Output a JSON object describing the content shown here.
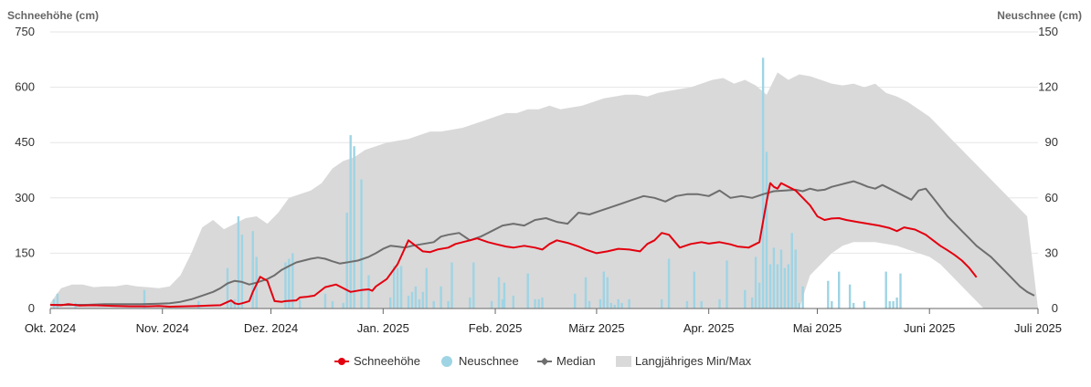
{
  "chart_data": {
    "type": "line",
    "title": "",
    "ylabel_left": "Schneehöhe (cm)",
    "ylabel_right": "Neuschnee (cm)",
    "ylim_left": [
      0,
      750
    ],
    "ylim_right": [
      0,
      150
    ],
    "yticks_left": [
      0,
      150,
      300,
      450,
      600,
      750
    ],
    "yticks_right": [
      0,
      30,
      60,
      90,
      120,
      150
    ],
    "yticks_left_labels": [
      "0",
      "150",
      "300",
      "450",
      "600",
      "750"
    ],
    "yticks_right_labels": [
      "0",
      "30",
      "60",
      "90",
      "120",
      "150"
    ],
    "x_day_range": [
      0,
      273
    ],
    "x_unit": "days since 2024-10-01",
    "xticks": [
      {
        "label": "Okt. 2024",
        "day": 0
      },
      {
        "label": "Nov. 2024",
        "day": 31
      },
      {
        "label": "Dez. 2024",
        "day": 61
      },
      {
        "label": "Jan. 2025",
        "day": 92
      },
      {
        "label": "Feb. 2025",
        "day": 123
      },
      {
        "label": "März 2025",
        "day": 151
      },
      {
        "label": "Apr. 2025",
        "day": 182
      },
      {
        "label": "Mai 2025",
        "day": 212
      },
      {
        "label": "Juni 2025",
        "day": 243
      },
      {
        "label": "Juli 2025",
        "day": 273
      }
    ],
    "grid": true,
    "legend_position": "bottom-center",
    "legend": [
      {
        "key": "schneehoehe",
        "label": "Schneehöhe",
        "color": "#e3000f"
      },
      {
        "key": "neuschnee",
        "label": "Neuschnee",
        "color": "#9fd4e4"
      },
      {
        "key": "median",
        "label": "Median",
        "color": "#6e6e6e"
      },
      {
        "key": "minmax",
        "label": "Langjähriges Min/Max",
        "color": "#d9d9d9"
      }
    ],
    "series": {
      "schneehoehe": {
        "name": "Schneehöhe",
        "axis": "left",
        "x": [
          0,
          3,
          5,
          8,
          12,
          18,
          22,
          27,
          30,
          33,
          37,
          41,
          44,
          47,
          50,
          51,
          52,
          53,
          55,
          56,
          58,
          60,
          62,
          64,
          65,
          68,
          69,
          71,
          73,
          76,
          79,
          80,
          83,
          86,
          88,
          89,
          90,
          93,
          96,
          99,
          101,
          103,
          105,
          107,
          110,
          112,
          114,
          116,
          118,
          121,
          123,
          126,
          128,
          131,
          134,
          136,
          138,
          140,
          143,
          146,
          148,
          151,
          154,
          157,
          160,
          163,
          165,
          167,
          169,
          171,
          174,
          177,
          180,
          182,
          185,
          188,
          190,
          193,
          196,
          198,
          199,
          200,
          201,
          202,
          204,
          206,
          208,
          210,
          212,
          214,
          216,
          218,
          220,
          223,
          226,
          229,
          232,
          234,
          236,
          239,
          242,
          244,
          246,
          248,
          250,
          252,
          254,
          256
        ],
        "y": [
          10,
          9,
          12,
          8,
          9,
          7,
          6,
          6,
          7,
          5,
          6,
          7,
          8,
          9,
          22,
          14,
          12,
          14,
          20,
          45,
          86,
          75,
          20,
          18,
          20,
          22,
          30,
          32,
          35,
          58,
          65,
          60,
          45,
          50,
          52,
          48,
          60,
          80,
          120,
          185,
          170,
          155,
          153,
          160,
          165,
          175,
          180,
          185,
          190,
          180,
          175,
          168,
          165,
          170,
          165,
          160,
          175,
          185,
          178,
          168,
          160,
          150,
          155,
          162,
          160,
          155,
          175,
          185,
          205,
          200,
          165,
          175,
          180,
          176,
          180,
          174,
          168,
          165,
          180,
          290,
          340,
          330,
          325,
          340,
          330,
          320,
          300,
          280,
          250,
          240,
          244,
          245,
          240,
          235,
          230,
          225,
          218,
          210,
          220,
          214,
          200,
          185,
          170,
          158,
          145,
          130,
          110,
          85
        ]
      },
      "median": {
        "name": "Median",
        "axis": "left",
        "x": [
          0,
          5,
          10,
          15,
          20,
          25,
          30,
          33,
          36,
          39,
          42,
          45,
          47,
          49,
          51,
          53,
          55,
          57,
          60,
          62,
          64,
          66,
          68,
          70,
          72,
          74,
          76,
          78,
          80,
          82,
          85,
          88,
          90,
          92,
          94,
          96,
          98,
          100,
          103,
          106,
          108,
          110,
          113,
          116,
          119,
          122,
          125,
          128,
          131,
          134,
          137,
          140,
          143,
          146,
          149,
          152,
          155,
          158,
          161,
          164,
          167,
          170,
          173,
          176,
          179,
          182,
          185,
          188,
          191,
          194,
          197,
          200,
          203,
          206,
          208,
          210,
          212,
          214,
          216,
          218,
          220,
          222,
          224,
          226,
          228,
          230,
          232,
          234,
          236,
          238,
          240,
          242,
          244,
          246,
          248,
          250,
          252,
          254,
          256,
          258,
          260,
          262,
          264,
          266,
          268,
          270,
          272
        ],
        "y": [
          10,
          10,
          10,
          12,
          12,
          12,
          13,
          14,
          18,
          25,
          35,
          45,
          55,
          68,
          75,
          72,
          65,
          70,
          80,
          90,
          105,
          115,
          125,
          130,
          135,
          138,
          135,
          128,
          122,
          125,
          130,
          140,
          150,
          162,
          170,
          168,
          165,
          170,
          175,
          180,
          195,
          200,
          205,
          185,
          195,
          210,
          225,
          230,
          225,
          240,
          245,
          235,
          230,
          260,
          255,
          265,
          275,
          285,
          295,
          305,
          300,
          290,
          305,
          310,
          310,
          305,
          320,
          300,
          305,
          300,
          310,
          318,
          320,
          322,
          318,
          325,
          320,
          322,
          330,
          335,
          340,
          345,
          338,
          330,
          325,
          335,
          325,
          315,
          305,
          295,
          320,
          325,
          300,
          275,
          250,
          230,
          210,
          190,
          170,
          155,
          140,
          120,
          100,
          80,
          60,
          45,
          35
        ]
      },
      "minmax": {
        "name": "Langjähriges Min/Max",
        "axis": "left",
        "x": [
          0,
          3,
          6,
          9,
          12,
          15,
          18,
          21,
          24,
          27,
          30,
          33,
          36,
          39,
          42,
          45,
          48,
          51,
          54,
          57,
          60,
          63,
          66,
          69,
          72,
          75,
          78,
          81,
          84,
          87,
          90,
          93,
          96,
          99,
          102,
          105,
          108,
          111,
          114,
          117,
          120,
          123,
          126,
          129,
          132,
          135,
          138,
          141,
          144,
          147,
          150,
          153,
          156,
          159,
          162,
          165,
          168,
          171,
          174,
          177,
          180,
          183,
          186,
          189,
          192,
          195,
          198,
          201,
          204,
          207,
          210,
          213,
          216,
          219,
          222,
          225,
          228,
          231,
          234,
          237,
          240,
          243,
          246,
          249,
          252,
          255,
          258,
          261,
          264,
          267,
          270,
          273
        ],
        "min": [
          0,
          0,
          0,
          0,
          0,
          0,
          0,
          0,
          0,
          0,
          0,
          0,
          0,
          0,
          0,
          0,
          0,
          0,
          0,
          0,
          0,
          0,
          0,
          0,
          0,
          0,
          0,
          0,
          0,
          0,
          0,
          0,
          0,
          0,
          0,
          0,
          0,
          0,
          0,
          0,
          0,
          0,
          0,
          0,
          0,
          0,
          0,
          0,
          0,
          0,
          0,
          0,
          0,
          0,
          0,
          0,
          0,
          0,
          0,
          0,
          0,
          0,
          0,
          0,
          0,
          0,
          0,
          0,
          0,
          0,
          90,
          120,
          150,
          170,
          180,
          180,
          180,
          175,
          170,
          160,
          150,
          140,
          120,
          90,
          60,
          30,
          0,
          0,
          0,
          0,
          0,
          0
        ],
        "max": [
          15,
          55,
          65,
          65,
          58,
          60,
          60,
          65,
          60,
          58,
          55,
          60,
          90,
          150,
          220,
          240,
          215,
          230,
          245,
          250,
          230,
          260,
          300,
          310,
          320,
          340,
          380,
          400,
          410,
          430,
          440,
          450,
          455,
          460,
          470,
          480,
          480,
          485,
          490,
          500,
          510,
          520,
          530,
          530,
          540,
          540,
          550,
          540,
          545,
          550,
          560,
          570,
          575,
          580,
          580,
          575,
          585,
          590,
          595,
          600,
          610,
          620,
          625,
          610,
          620,
          605,
          580,
          640,
          620,
          635,
          630,
          620,
          610,
          605,
          610,
          600,
          610,
          585,
          575,
          560,
          540,
          520,
          490,
          460,
          430,
          400,
          370,
          340,
          310,
          280,
          250,
          0
        ]
      },
      "neuschnee": {
        "name": "Neuschnee",
        "axis": "right",
        "x": [
          1,
          2,
          7,
          26,
          41,
          49,
          50,
          51,
          52,
          53,
          56,
          57,
          65,
          66,
          67,
          69,
          76,
          78,
          81,
          82,
          83,
          84,
          86,
          88,
          94,
          95,
          96,
          97,
          99,
          100,
          101,
          102,
          103,
          104,
          106,
          108,
          110,
          111,
          116,
          117,
          122,
          124,
          125,
          125.5,
          128,
          132,
          134,
          135,
          136,
          145,
          148,
          149,
          152,
          153,
          154,
          155,
          156,
          157,
          158,
          160,
          169,
          171,
          176,
          178,
          180,
          185,
          187,
          192,
          194,
          195,
          196,
          197,
          198,
          199,
          200,
          201,
          202,
          203,
          204,
          205,
          206,
          207,
          208,
          215,
          216,
          218,
          221,
          222,
          225,
          231,
          232,
          233,
          234,
          235
        ],
        "y": [
          5,
          8,
          3,
          10,
          4,
          22,
          4,
          5,
          50,
          40,
          42,
          28,
          25,
          27,
          30,
          5,
          8,
          4,
          3,
          52,
          94,
          88,
          70,
          18,
          6,
          23,
          22,
          23,
          7,
          9,
          12,
          5,
          9,
          22,
          4,
          12,
          4,
          25,
          6,
          25,
          4,
          17,
          5,
          14,
          7,
          19,
          5,
          5,
          6,
          8,
          17,
          4,
          5,
          20,
          17,
          3,
          2,
          5,
          3,
          5,
          5,
          27,
          4,
          20,
          4,
          5,
          26,
          10,
          6,
          28,
          14,
          136,
          85,
          24,
          33,
          24,
          32,
          22,
          24,
          41,
          32,
          3,
          12,
          15,
          4,
          20,
          13,
          3,
          4,
          20,
          4,
          4,
          6,
          19
        ]
      }
    }
  }
}
